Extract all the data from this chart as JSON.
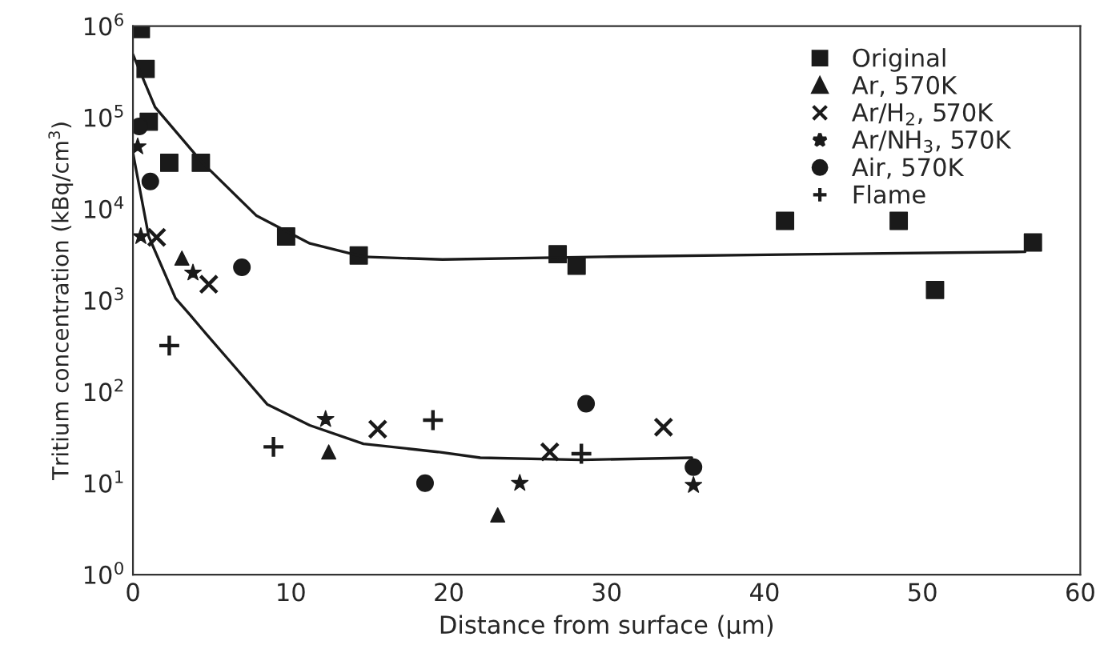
{
  "chart_data": {
    "type": "scatter",
    "xlabel": "Distance from surface (µm)",
    "ylabel": "Tritium concentration (kBq/cm$^{3}$)",
    "log": "y",
    "xlim": [
      0,
      60
    ],
    "xticks": [
      0,
      10,
      20,
      30,
      40,
      50,
      60
    ],
    "ylim": [
      1,
      1000000
    ],
    "yticks": [
      {
        "value": 1,
        "label": "10$^{0}$"
      },
      {
        "value": 10,
        "label": "10$^{1}$"
      },
      {
        "value": 100,
        "label": "10$^{2}$"
      },
      {
        "value": 1000,
        "label": "10$^{3}$"
      },
      {
        "value": 10000,
        "label": "10$^{4}$"
      },
      {
        "value": 100000,
        "label": "10$^{5}$"
      },
      {
        "value": 1000000,
        "label": "10$^{6}$"
      }
    ],
    "grid": false,
    "legend": "top right",
    "series": [
      {
        "name": "Original",
        "color": "#1a1a1a",
        "marker": "square",
        "x": [
          0.5,
          0.8,
          1.0,
          2.3,
          4.3,
          9.7,
          14.3,
          26.9,
          28.1,
          41.3,
          48.5,
          50.8,
          57.0
        ],
        "values": [
          930000,
          340000,
          90000,
          32000,
          32000,
          5000,
          3100,
          3200,
          2400,
          7400,
          7400,
          1300,
          4300
        ]
      },
      {
        "name": "Ar, 570K",
        "color": "#1a1a1a",
        "marker": "triangle",
        "x": [
          3.1,
          12.4,
          23.1
        ],
        "values": [
          2900,
          22,
          4.5
        ]
      },
      {
        "name": "Ar/H$_{2}$, 570K",
        "color": "#1a1a1a",
        "marker": "cross",
        "x": [
          1.5,
          4.8,
          15.5,
          26.4,
          33.6
        ],
        "values": [
          4900,
          1500,
          39,
          22,
          41
        ]
      },
      {
        "name": "Ar/NH$_{3}$, 570K",
        "color": "#1a1a1a",
        "marker": "star",
        "x": [
          0.3,
          0.5,
          3.8,
          12.2,
          24.5,
          35.5
        ],
        "values": [
          48000,
          5000,
          2000,
          50,
          10,
          9.5
        ]
      },
      {
        "name": "Air, 570K",
        "color": "#1a1a1a",
        "marker": "circle",
        "x": [
          0.4,
          1.1,
          6.9,
          18.5,
          28.7,
          35.5
        ],
        "values": [
          80000,
          20000,
          2300,
          10,
          74,
          15
        ]
      },
      {
        "name": "Flame",
        "color": "#1a1a1a",
        "marker": "plus",
        "x": [
          2.3,
          8.9,
          19.0,
          28.4
        ],
        "values": [
          320,
          25,
          49,
          21
        ]
      },
      {
        "type": "line",
        "color": "#1a1a1a",
        "marker": "none",
        "x": [
          0,
          1.4,
          4.4,
          7.8,
          11.2,
          14.6,
          19.6,
          29.8,
          43.3,
          56.5
        ],
        "values": [
          490000,
          130000,
          32000,
          8500,
          4200,
          3000,
          2800,
          3000,
          3200,
          3400
        ]
      },
      {
        "type": "line",
        "color": "#1a1a1a",
        "marker": "none",
        "x": [
          0,
          1.0,
          2.7,
          3.6,
          4.4,
          6.1,
          8.5,
          11.2,
          14.6,
          19.3,
          22.0,
          28.4,
          35.4
        ],
        "values": [
          41000,
          5000,
          1050,
          700,
          480,
          220,
          73,
          43,
          27,
          22,
          19,
          18,
          19
        ]
      }
    ]
  }
}
